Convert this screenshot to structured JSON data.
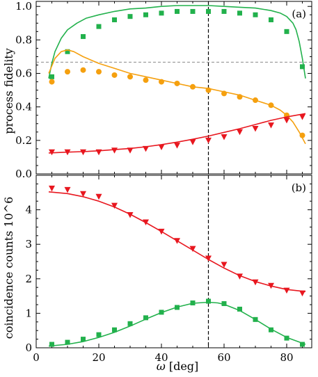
{
  "figure": {
    "xlabel_symbol": "ω",
    "xlabel_unit": " [deg]"
  },
  "colors": {
    "green": "#22b14c",
    "orange": "#f5a00f",
    "red": "#e8171f",
    "axis": "#000000",
    "guide": "#888888"
  },
  "chart_data": [
    {
      "type": "scatter",
      "panel_label": "(a)",
      "xlabel": "",
      "ylabel": "process fidelity",
      "xlim": [
        0,
        88
      ],
      "ylim": [
        0,
        1.03
      ],
      "xticks": [
        0,
        20,
        40,
        60,
        80
      ],
      "yticks": [
        0.0,
        0.2,
        0.4,
        0.6,
        0.8,
        1.0
      ],
      "ytick_labels": [
        "0.0",
        "0.2",
        "0.4",
        "0.6",
        "0.8",
        "1.0"
      ],
      "reference_lines": {
        "horizontal_y": 0.667,
        "vertical_x": 55
      },
      "grid": false,
      "series": [
        {
          "color": "green",
          "marker": "square",
          "x": [
            5,
            10,
            15,
            20,
            25,
            30,
            35,
            40,
            45,
            50,
            55,
            60,
            65,
            70,
            75,
            80,
            85
          ],
          "y": [
            0.58,
            0.73,
            0.82,
            0.88,
            0.92,
            0.94,
            0.95,
            0.96,
            0.97,
            0.97,
            0.97,
            0.97,
            0.96,
            0.95,
            0.92,
            0.85,
            0.64
          ],
          "fit": {
            "x": [
              4,
              5,
              6,
              8,
              10,
              13,
              16,
              20,
              25,
              30,
              35,
              40,
              45,
              50,
              55,
              60,
              65,
              70,
              75,
              78,
              80,
              82,
              83,
              84,
              85,
              86
            ],
            "y": [
              0.57,
              0.66,
              0.73,
              0.81,
              0.86,
              0.9,
              0.93,
              0.95,
              0.97,
              0.985,
              0.99,
              1.0,
              1.005,
              1.005,
              1.005,
              1.0,
              0.995,
              0.99,
              0.975,
              0.96,
              0.94,
              0.9,
              0.86,
              0.79,
              0.69,
              0.57
            ]
          }
        },
        {
          "color": "orange",
          "marker": "circle",
          "x": [
            5,
            10,
            15,
            20,
            25,
            30,
            35,
            40,
            45,
            50,
            55,
            60,
            65,
            70,
            75,
            80,
            85
          ],
          "y": [
            0.55,
            0.61,
            0.62,
            0.61,
            0.59,
            0.58,
            0.56,
            0.55,
            0.54,
            0.52,
            0.5,
            0.48,
            0.46,
            0.44,
            0.41,
            0.35,
            0.23
          ],
          "fit": {
            "x": [
              4,
              6,
              8,
              10,
              12,
              15,
              20,
              25,
              30,
              35,
              40,
              45,
              50,
              55,
              60,
              65,
              70,
              75,
              78,
              80,
              82,
              84,
              86
            ],
            "y": [
              0.6,
              0.69,
              0.73,
              0.74,
              0.73,
              0.7,
              0.66,
              0.63,
              0.6,
              0.58,
              0.56,
              0.54,
              0.52,
              0.51,
              0.49,
              0.47,
              0.44,
              0.41,
              0.38,
              0.35,
              0.31,
              0.25,
              0.18
            ]
          }
        },
        {
          "color": "red",
          "marker": "triangle-down",
          "x": [
            5,
            10,
            15,
            20,
            25,
            30,
            35,
            40,
            45,
            50,
            55,
            60,
            65,
            70,
            75,
            80,
            85
          ],
          "y": [
            0.13,
            0.13,
            0.13,
            0.13,
            0.14,
            0.14,
            0.15,
            0.16,
            0.17,
            0.19,
            0.2,
            0.22,
            0.25,
            0.27,
            0.29,
            0.32,
            0.34
          ],
          "fit": {
            "x": [
              4,
              10,
              15,
              20,
              25,
              30,
              35,
              40,
              45,
              50,
              55,
              60,
              65,
              70,
              75,
              80,
              86
            ],
            "y": [
              0.125,
              0.13,
              0.133,
              0.138,
              0.145,
              0.152,
              0.162,
              0.175,
              0.19,
              0.207,
              0.226,
              0.248,
              0.27,
              0.295,
              0.32,
              0.34,
              0.36
            ]
          }
        }
      ]
    },
    {
      "type": "scatter",
      "panel_label": "(b)",
      "xlabel": "ω [deg]",
      "ylabel": "coincidence counts 10^6",
      "xlim": [
        0,
        88
      ],
      "ylim": [
        0,
        5
      ],
      "xticks": [
        0,
        20,
        40,
        60,
        80
      ],
      "xtick_labels": [
        "0",
        "20",
        "40",
        "60",
        "80"
      ],
      "yticks": [
        0,
        1,
        2,
        3,
        4
      ],
      "ytick_labels": [
        "0",
        "1",
        "2",
        "3",
        "4"
      ],
      "reference_lines": {
        "vertical_x": 55
      },
      "grid": false,
      "series": [
        {
          "color": "red",
          "marker": "triangle-down",
          "x": [
            5,
            10,
            15,
            20,
            25,
            30,
            35,
            40,
            45,
            50,
            55,
            60,
            65,
            70,
            75,
            80,
            85
          ],
          "y": [
            4.62,
            4.58,
            4.46,
            4.38,
            4.12,
            3.85,
            3.64,
            3.37,
            3.1,
            2.87,
            2.59,
            2.41,
            2.07,
            1.9,
            1.8,
            1.66,
            1.58
          ],
          "fit": {
            "x": [
              4,
              10,
              15,
              20,
              25,
              30,
              35,
              40,
              45,
              50,
              55,
              60,
              65,
              70,
              75,
              80,
              86
            ],
            "y": [
              4.52,
              4.47,
              4.38,
              4.25,
              4.08,
              3.87,
              3.63,
              3.37,
              3.1,
              2.83,
              2.56,
              2.31,
              2.09,
              1.92,
              1.79,
              1.69,
              1.63
            ]
          }
        },
        {
          "color": "green",
          "marker": "square",
          "x": [
            5,
            10,
            15,
            20,
            25,
            30,
            35,
            40,
            45,
            50,
            55,
            60,
            65,
            70,
            75,
            80,
            85
          ],
          "y": [
            0.1,
            0.16,
            0.25,
            0.38,
            0.52,
            0.7,
            0.87,
            1.03,
            1.17,
            1.3,
            1.35,
            1.28,
            1.12,
            0.82,
            0.52,
            0.28,
            0.1
          ],
          "fit": {
            "x": [
              4,
              10,
              15,
              20,
              25,
              30,
              35,
              40,
              45,
              50,
              55,
              58,
              60,
              65,
              70,
              75,
              80,
              86
            ],
            "y": [
              0.05,
              0.1,
              0.18,
              0.3,
              0.45,
              0.63,
              0.83,
              1.02,
              1.18,
              1.29,
              1.32,
              1.3,
              1.26,
              1.08,
              0.82,
              0.54,
              0.3,
              0.1
            ]
          }
        }
      ]
    }
  ]
}
